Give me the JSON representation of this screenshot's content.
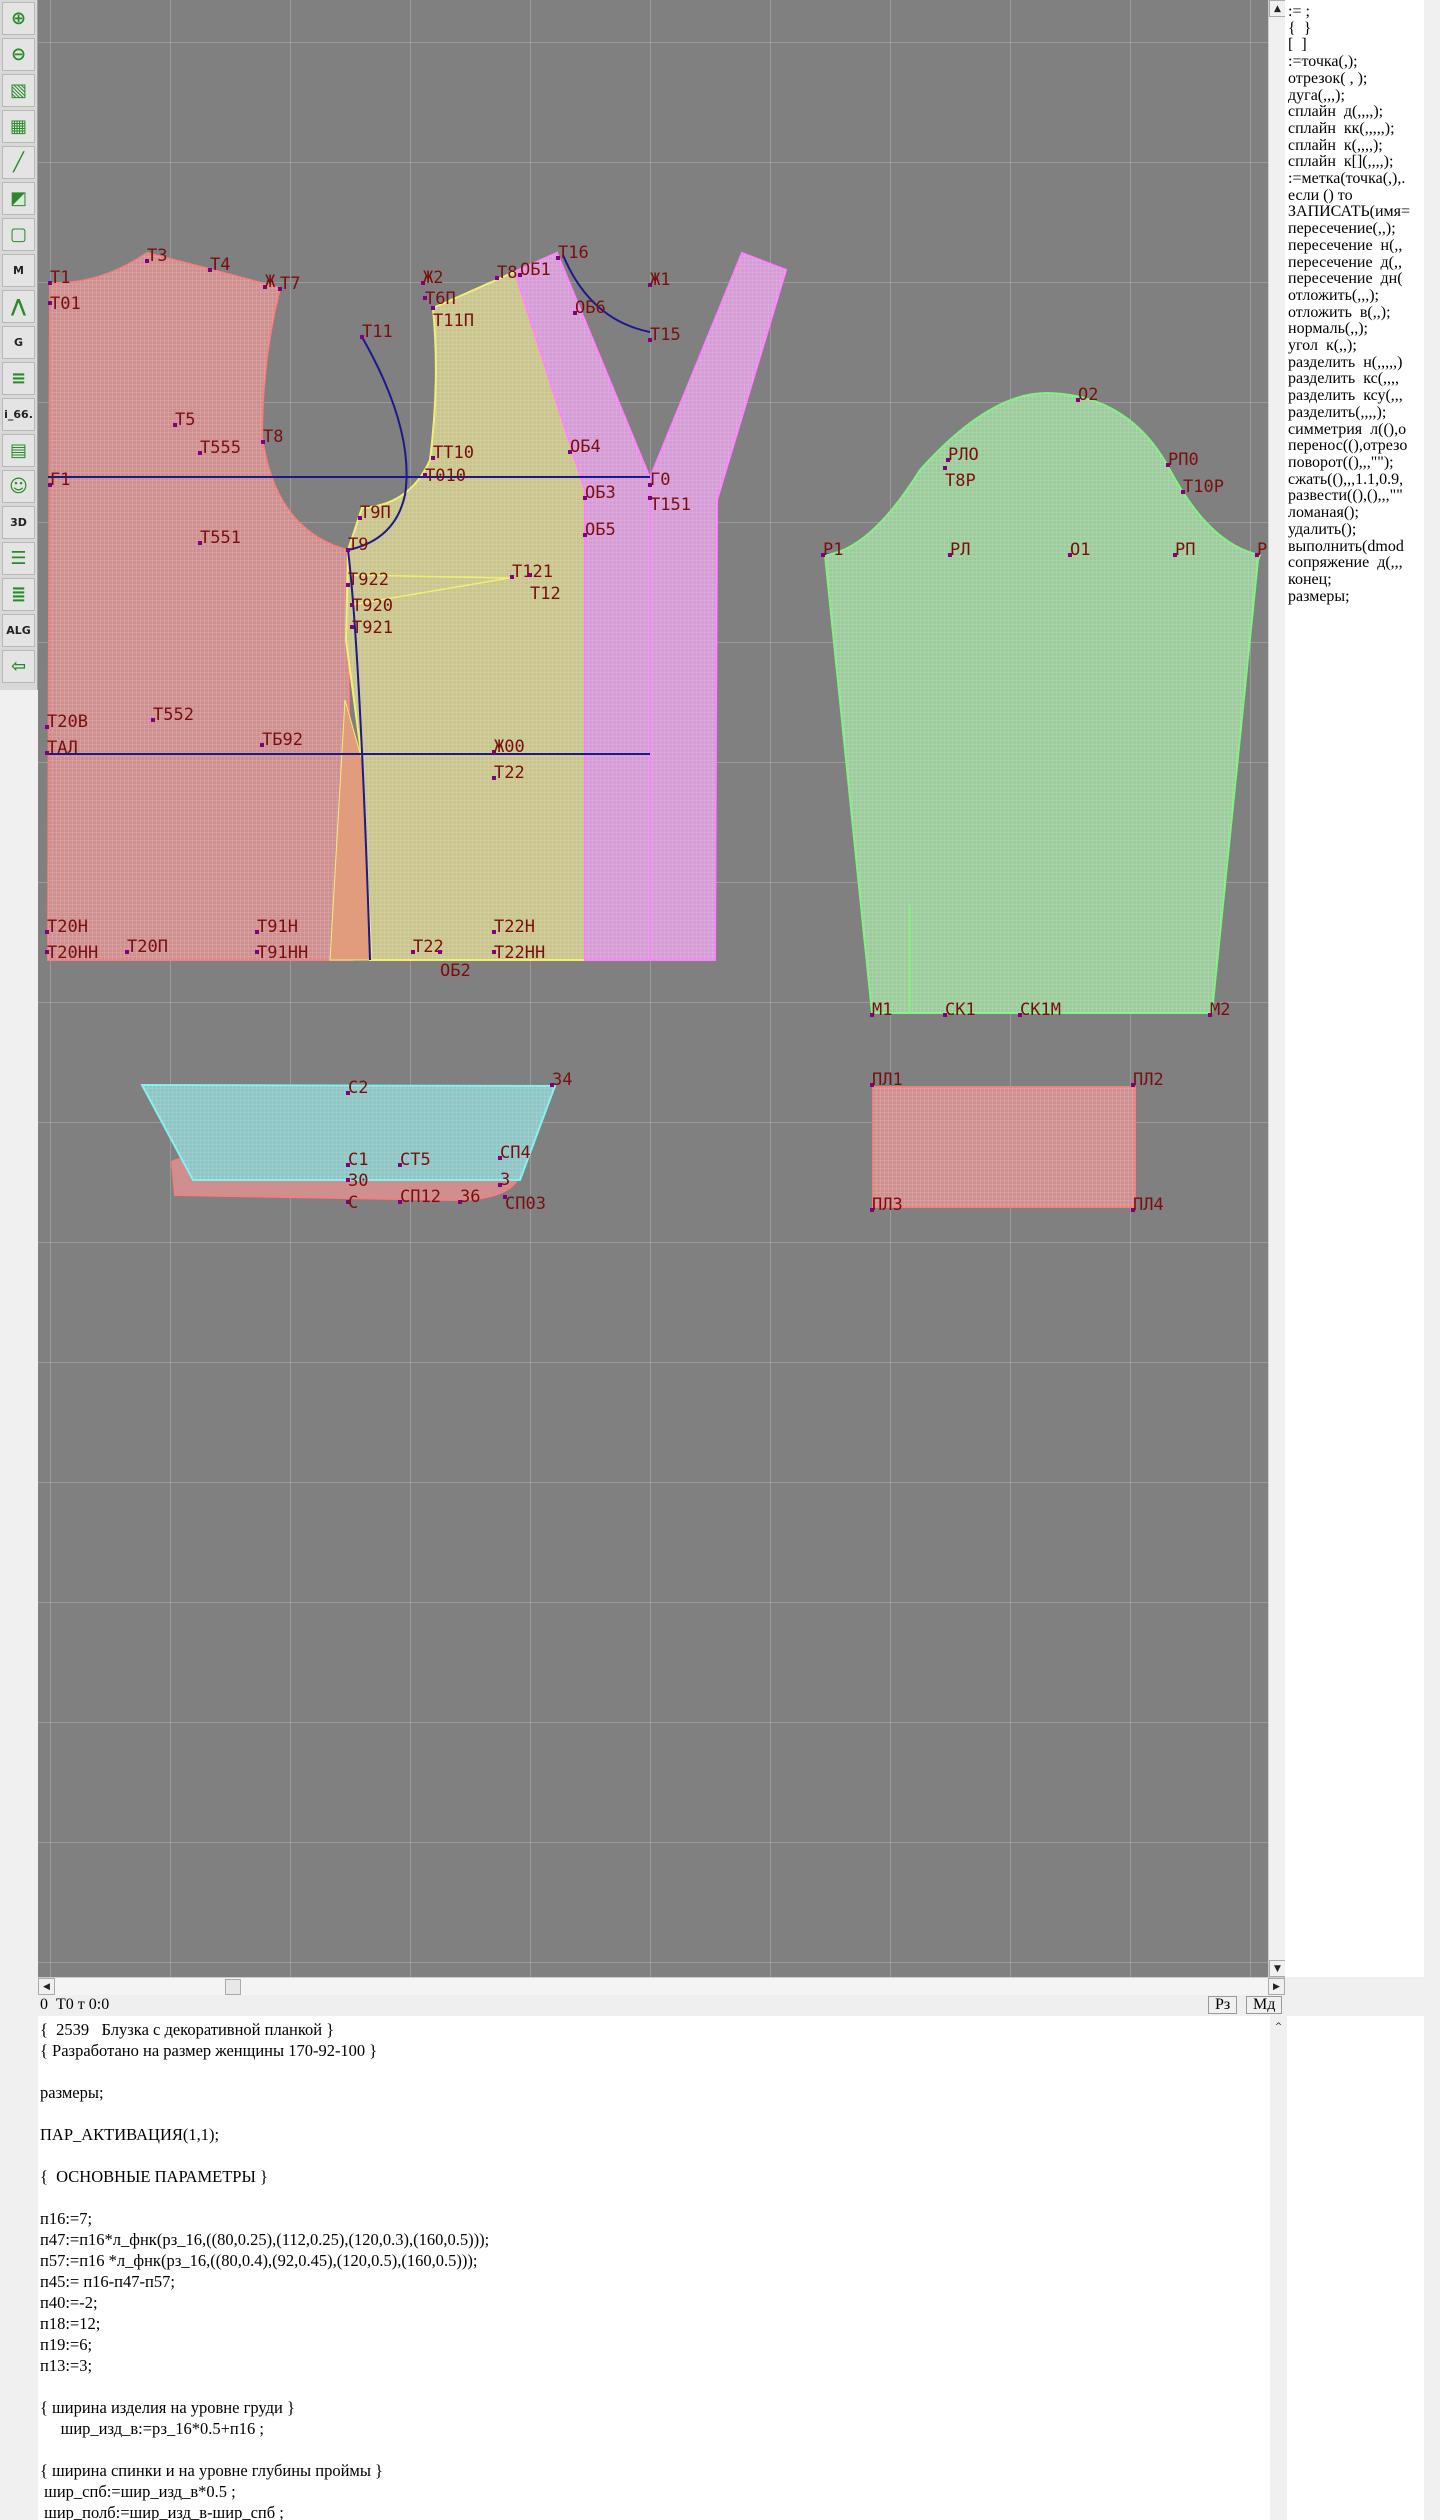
{
  "toolbar": {
    "items": [
      {
        "icon": "zoom-in-icon"
      },
      {
        "icon": "zoom-out-icon"
      },
      {
        "icon": "pattern-pieces-icon"
      },
      {
        "icon": "grid-icon"
      },
      {
        "icon": "line-segment-icon"
      },
      {
        "icon": "layer-icon"
      },
      {
        "icon": "outline-icon"
      },
      {
        "icon": "model-m-icon",
        "text": "M"
      },
      {
        "icon": "compass-icon"
      },
      {
        "icon": "grading-g-icon",
        "text": "G"
      },
      {
        "icon": "ruler-icon"
      },
      {
        "icon": "variable-icon",
        "text": "i_66."
      },
      {
        "icon": "table-icon"
      },
      {
        "icon": "photo-icon"
      },
      {
        "icon": "3d-icon",
        "text": "3D"
      },
      {
        "icon": "list-icon"
      },
      {
        "icon": "books-icon"
      },
      {
        "icon": "algorithm-icon",
        "text": "ALG"
      },
      {
        "icon": "exit-icon"
      }
    ]
  },
  "canvas": {
    "labels": [
      "Т1",
      "Т01",
      "Т3",
      "Т4",
      "Ж",
      "Т7",
      "Т11",
      "Т5",
      "Т8",
      "Т555",
      "Г1",
      "Т551",
      "Т9П",
      "Т9",
      "Т922",
      "Т920",
      "Т921",
      "Ж2",
      "Т6П",
      "Т11П",
      "Т8",
      "ОБ1",
      "Т16",
      "Ж1",
      "ОБ6",
      "Т15",
      "ОБ4",
      "ТТ10",
      "Т010",
      "Г0",
      "ОБ3",
      "Т151",
      "ОБ5",
      "Т121",
      "Т12",
      "Т20В",
      "ТАЛ",
      "Т552",
      "ТБ92",
      "Ж00",
      "Т22",
      "Т20Н",
      "Т20НН",
      "Т20П",
      "Т91Н",
      "Т91НН",
      "Т22",
      "ОБ2",
      "Т22Н",
      "Т22НН",
      "О2",
      "РЛО",
      "Т8Р",
      "РП0",
      "Т10Р",
      "Р1",
      "РЛ",
      "О1",
      "РП",
      "Р",
      "М1",
      "СК1",
      "СК1М",
      "М2",
      "ПЛ1",
      "ПЛ2",
      "ПЛ3",
      "ПЛ4",
      "С2",
      "34",
      "С1",
      "СТ5",
      "СП4",
      "30",
      "С",
      "СП12",
      "36",
      "3",
      "СП03"
    ],
    "colors": {
      "background": "#808080",
      "back": "#cf8f8f",
      "front": "#c9c58d",
      "placket": "#d69cd6",
      "sleeve": "#9ccc9c",
      "collar": "#8ec6c6",
      "label": "#7a0e0e",
      "construction_line": "#1a1a8c"
    }
  },
  "status": {
    "text": "0  Т0 т 0:0",
    "rz_button": "Рз",
    "md_button": "Мд"
  },
  "snippets": [
    ":= ;",
    "{  }",
    "[  ]",
    ":=точка(,);",
    "отрезок( , );",
    "дуга(,,,);",
    "сплайн  д(,,,,);",
    "сплайн  кк(,,,,,);",
    "сплайн  к(,,,,);",
    "сплайн  к[](,,,,);",
    ":=метка(точка(,),.",
    "если () то",
    "ЗАПИСАТЬ(имя=",
    "пересечение(,,);",
    "пересечение  н(,,",
    "пересечение  д(,,",
    "пересечение  дн(",
    "отложить(,,,);",
    "отложить  в(,,);",
    "нормаль(,,);",
    "угол  к(,,);",
    "разделить  н(,,,,,)",
    "разделить  кс(,,,,",
    "разделить  ксу(,,,",
    "разделить(,,,,);",
    "симметрия  л((),о",
    "перенос((),отрезо",
    "поворот((),,,\"\");",
    "сжать((),,,1.1,0.9,",
    "развести((),(),,,\"\"",
    "ломаная();",
    "удалить();",
    "выполнить(dmod",
    "сопряжение  д(,,,",
    "конец;",
    "размеры;"
  ],
  "code": [
    "{  2539   Блузка с декоративной планкой }",
    "{ Разработано на размер женщины 170-92-100 }",
    "",
    "размеры;",
    "",
    "ПАР_АКТИВАЦИЯ(1,1);",
    "",
    "{  ОСНОВНЫЕ ПАРАМЕТРЫ }",
    "",
    "п16:=7;",
    "п47:=п16*л_фнк(рз_16,((80,0.25),(112,0.25),(120,0.3),(160,0.5)));",
    "п57:=п16 *л_фнк(рз_16,((80,0.4),(92,0.45),(120,0.5),(160,0.5)));",
    "п45:= п16-п47-п57;",
    "п40:=-2;",
    "п18:=12;",
    "п19:=6;",
    "п13:=3;",
    "",
    "{ ширина изделия на уровне груди }",
    "     шир_изд_в:=рз_16*0.5+п16 ;",
    "",
    "{ ширина спинки и на уровне глубины проймы }",
    " шир_спб:=шир_изд_в*0.5 ;",
    " шир_полб:=шир_изд_в-шир_спб ;"
  ]
}
